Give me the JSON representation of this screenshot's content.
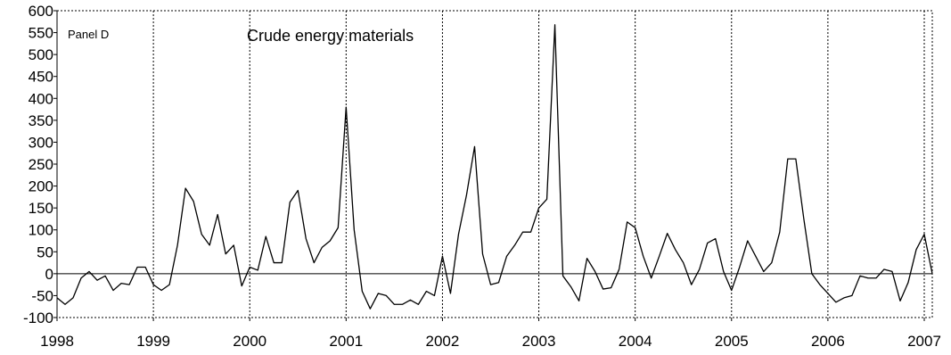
{
  "chart_data": {
    "type": "line",
    "panel_label": "Panel D",
    "title": "Crude energy materials",
    "xlabel": "",
    "ylabel": "",
    "ylim": [
      -100,
      600
    ],
    "yticks": [
      -100,
      -50,
      0,
      50,
      100,
      150,
      200,
      250,
      300,
      350,
      400,
      450,
      500,
      550,
      600
    ],
    "xlim": [
      1998,
      2007.0833
    ],
    "xticks": [
      1998,
      1999,
      2000,
      2001,
      2002,
      2003,
      2004,
      2005,
      2006,
      2007
    ],
    "vertical_dotted_lines_at": [
      1999,
      2000,
      2001,
      2002,
      2003,
      2004,
      2005,
      2006,
      2007
    ],
    "zero_line": true,
    "series": [
      {
        "color": "#000000",
        "x": [
          1998.0,
          1998.0833,
          1998.1667,
          1998.25,
          1998.3333,
          1998.4167,
          1998.5,
          1998.5833,
          1998.6667,
          1998.75,
          1998.8333,
          1998.9167,
          1999.0,
          1999.0833,
          1999.1667,
          1999.25,
          1999.3333,
          1999.4167,
          1999.5,
          1999.5833,
          1999.6667,
          1999.75,
          1999.8333,
          1999.9167,
          2000.0,
          2000.0833,
          2000.1667,
          2000.25,
          2000.3333,
          2000.4167,
          2000.5,
          2000.5833,
          2000.6667,
          2000.75,
          2000.8333,
          2000.9167,
          2001.0,
          2001.0833,
          2001.1667,
          2001.25,
          2001.3333,
          2001.4167,
          2001.5,
          2001.5833,
          2001.6667,
          2001.75,
          2001.8333,
          2001.9167,
          2002.0,
          2002.0833,
          2002.1667,
          2002.25,
          2002.3333,
          2002.4167,
          2002.5,
          2002.5833,
          2002.6667,
          2002.75,
          2002.8333,
          2002.9167,
          2003.0,
          2003.0833,
          2003.1667,
          2003.25,
          2003.3333,
          2003.4167,
          2003.5,
          2003.5833,
          2003.6667,
          2003.75,
          2003.8333,
          2003.9167,
          2004.0,
          2004.0833,
          2004.1667,
          2004.25,
          2004.3333,
          2004.4167,
          2004.5,
          2004.5833,
          2004.6667,
          2004.75,
          2004.8333,
          2004.9167,
          2005.0,
          2005.0833,
          2005.1667,
          2005.25,
          2005.3333,
          2005.4167,
          2005.5,
          2005.5833,
          2005.6667,
          2005.75,
          2005.8333,
          2005.9167,
          2006.0,
          2006.0833,
          2006.1667,
          2006.25,
          2006.3333,
          2006.4167,
          2006.5,
          2006.5833,
          2006.6667,
          2006.75,
          2006.8333,
          2006.9167,
          2007.0,
          2007.0833
        ],
        "y": [
          -55,
          -70,
          -55,
          -10,
          5,
          -15,
          -5,
          -38,
          -22,
          -25,
          15,
          15,
          -25,
          -38,
          -25,
          65,
          195,
          165,
          90,
          65,
          135,
          45,
          65,
          -28,
          15,
          8,
          85,
          25,
          25,
          163,
          190,
          80,
          25,
          60,
          75,
          105,
          380,
          100,
          -40,
          -80,
          -45,
          -50,
          -70,
          -70,
          -60,
          -70,
          -40,
          -50,
          40,
          -45,
          90,
          180,
          290,
          45,
          -25,
          -20,
          40,
          65,
          95,
          95,
          150,
          170,
          568,
          -5,
          -30,
          -62,
          35,
          5,
          -35,
          -32,
          10,
          118,
          105,
          40,
          -10,
          40,
          92,
          55,
          25,
          -25,
          10,
          70,
          80,
          5,
          -38,
          15,
          75,
          40,
          5,
          25,
          95,
          262,
          262,
          125,
          0,
          -25,
          -45,
          -65,
          -55,
          -50,
          -5,
          -10,
          -10,
          10,
          5,
          -62,
          -20,
          55,
          90,
          0
        ]
      }
    ]
  }
}
